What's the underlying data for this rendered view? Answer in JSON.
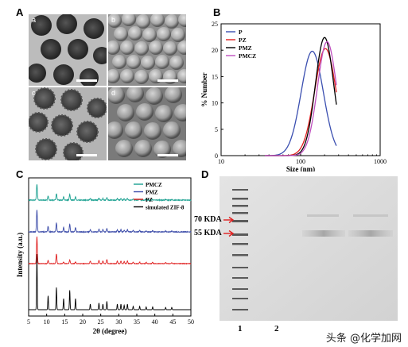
{
  "panels": {
    "A": {
      "letter": "A",
      "subpanels": [
        "a",
        "b",
        "c",
        "d"
      ]
    },
    "B": {
      "letter": "B"
    },
    "C": {
      "letter": "C"
    },
    "D": {
      "letter": "D"
    }
  },
  "colors": {
    "P": "#3b4fb0",
    "PZ": "#e02020",
    "PMZ": "#000000",
    "PMCZ": "#c050c0",
    "C_PMCZ": "#1aa090",
    "C_PMZ": "#3a4aa8",
    "C_PZ": "#e02020",
    "C_ZIF": "#000000"
  },
  "chart_data": [
    {
      "type": "line",
      "xlabel": "Size (nm)",
      "ylabel": "% Number",
      "x_scale": "log",
      "xlim": [
        10,
        1000
      ],
      "ylim": [
        0,
        25
      ],
      "x_ticks": [
        "10",
        "100",
        "1000"
      ],
      "y_ticks": [
        "0",
        "5",
        "10",
        "15",
        "20",
        "25"
      ],
      "legend": [
        "P",
        "PZ",
        "PMZ",
        "PMCZ"
      ],
      "series": [
        {
          "name": "P",
          "peak_x": 140,
          "peak_y": 19.8
        },
        {
          "name": "PZ",
          "peak_x": 205,
          "peak_y": 20.3
        },
        {
          "name": "PMZ",
          "peak_x": 200,
          "peak_y": 22.4
        },
        {
          "name": "PMCZ",
          "peak_x": 215,
          "peak_y": 21.6
        }
      ]
    },
    {
      "type": "line",
      "xlabel": "2θ (degree)",
      "ylabel": "Intensity (a.u.)",
      "xlim": [
        5,
        50
      ],
      "x_ticks": [
        "5",
        "10",
        "15",
        "20",
        "25",
        "30",
        "35",
        "40",
        "45",
        "50"
      ],
      "legend": [
        "PMCZ",
        "PMZ",
        "PZ",
        "simulated ZIF-8"
      ],
      "peaks_2theta": [
        7.3,
        10.4,
        12.7,
        14.7,
        16.4,
        18.0,
        22.1,
        24.5,
        25.6,
        26.7,
        29.6,
        30.6,
        31.5,
        32.4,
        34.0,
        35.8,
        37.6,
        39.4,
        43.0,
        44.7
      ]
    }
  ],
  "gel": {
    "markers": [
      "70 KDA",
      "55 KDA"
    ],
    "lanes": [
      "1",
      "2",
      "",
      ""
    ]
  },
  "watermark": "头条 @化学加网"
}
